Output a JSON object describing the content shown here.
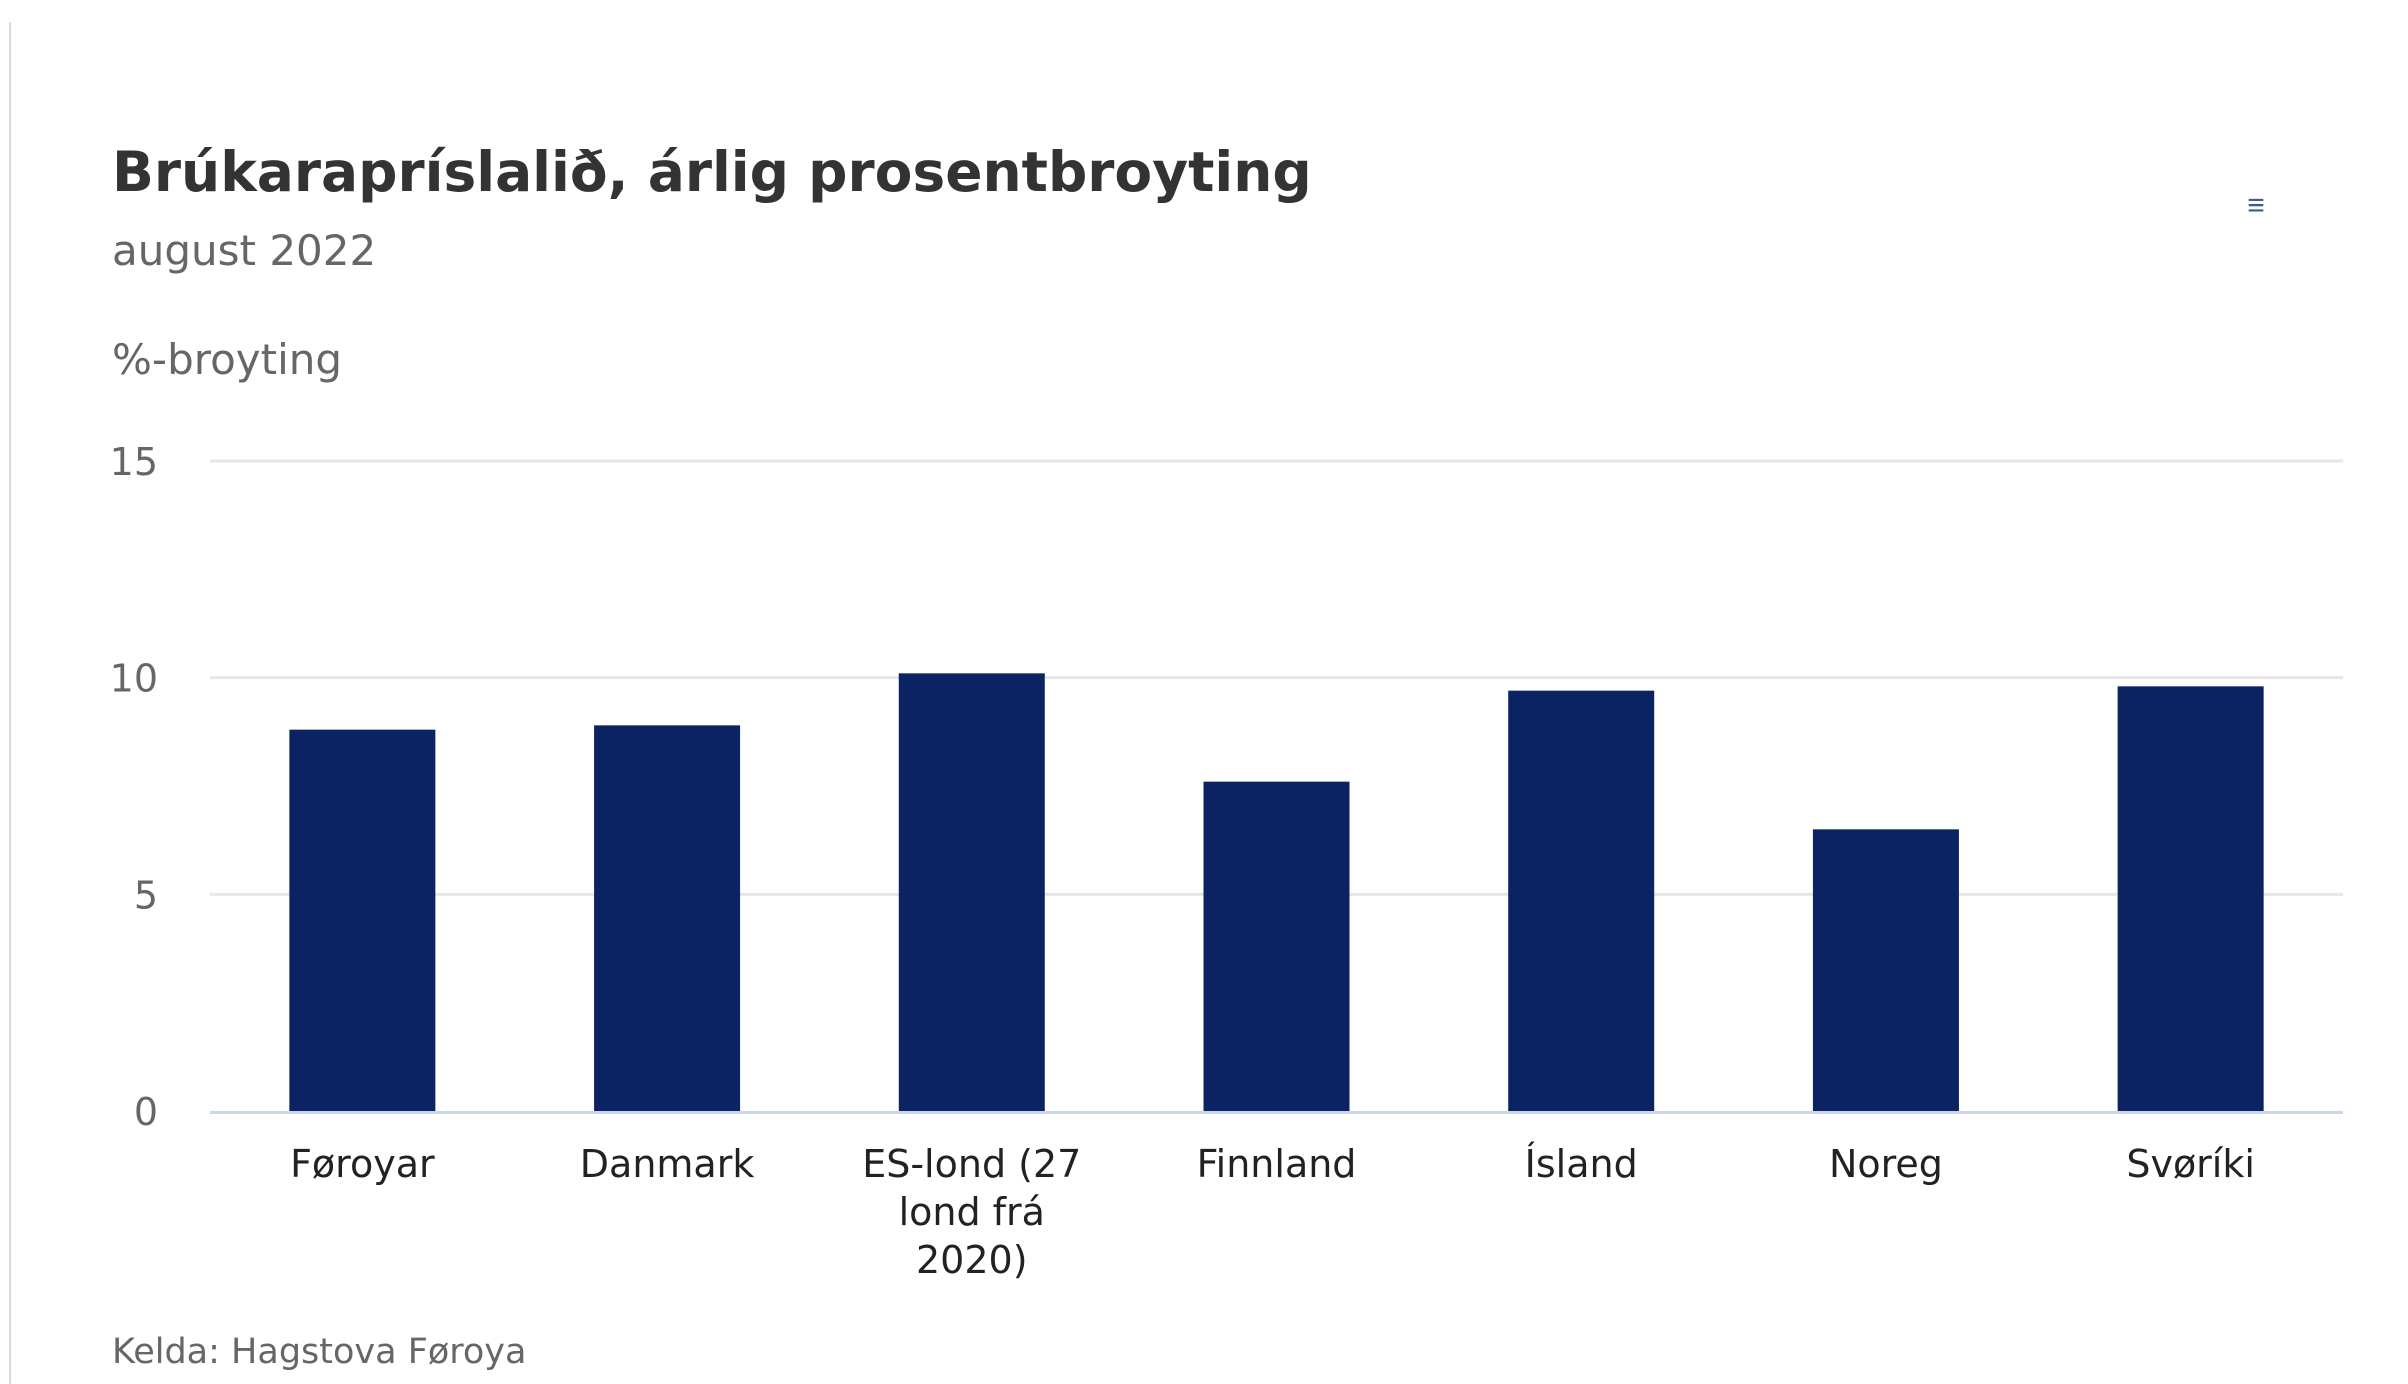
{
  "header": {
    "title": "Brúkarapríslalið, árlig prosentbroyting",
    "subtitle": "august 2022"
  },
  "menu": {
    "icon": "hamburger-menu-icon",
    "glyph": "≡"
  },
  "caption": "Kelda: Hagstova Føroya",
  "colors": {
    "bar": "#0b2263",
    "grid": "#e6e6e6",
    "axis": "#ccd6eb",
    "tick_text": "#666666",
    "category_text": "#222222"
  },
  "chart_data": {
    "type": "bar",
    "title": "Brúkarapríslalið, árlig prosentbroyting",
    "subtitle": "august 2022",
    "ylabel": "%-broyting",
    "xlabel": "",
    "categories": [
      "Føroyar",
      "Danmark",
      "ES-lond (27 lond frá 2020)",
      "Finnland",
      "Ísland",
      "Noreg",
      "Svøríki"
    ],
    "values": [
      8.8,
      8.9,
      10.1,
      7.6,
      9.7,
      6.5,
      9.8
    ],
    "ylim": [
      0,
      15
    ],
    "yticks": [
      0,
      5,
      10,
      15
    ],
    "grid": true,
    "legend": "none"
  }
}
